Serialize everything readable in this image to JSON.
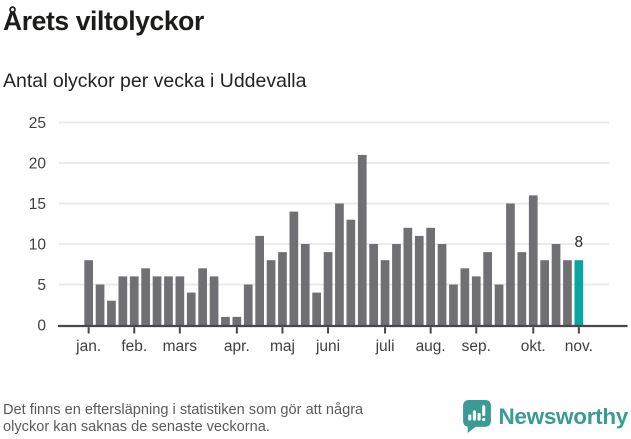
{
  "header": {
    "title": "Årets viltolyckor",
    "subtitle": "Antal olyckor per vecka i Uddevalla"
  },
  "chart_data": {
    "type": "bar",
    "title": "Årets viltolyckor",
    "subtitle": "Antal olyckor per vecka i Uddevalla",
    "x_unit": "vecka",
    "n_weeks": 44,
    "values": [
      8,
      5,
      3,
      6,
      6,
      7,
      6,
      6,
      6,
      4,
      7,
      6,
      1,
      1,
      5,
      11,
      8,
      9,
      14,
      10,
      4,
      9,
      15,
      13,
      21,
      10,
      8,
      10,
      12,
      11,
      12,
      10,
      5,
      7,
      6,
      9,
      5,
      15,
      9,
      16,
      8,
      10,
      8,
      8
    ],
    "ylim": [
      0,
      25
    ],
    "yticks": [
      0,
      5,
      10,
      15,
      20,
      25
    ],
    "grid": true,
    "legend": "none",
    "month_ticks": [
      {
        "label": "jan.",
        "bar_index": 1
      },
      {
        "label": "feb.",
        "bar_index": 5
      },
      {
        "label": "mars",
        "bar_index": 9
      },
      {
        "label": "apr.",
        "bar_index": 14
      },
      {
        "label": "maj",
        "bar_index": 18
      },
      {
        "label": "juni",
        "bar_index": 22
      },
      {
        "label": "juli",
        "bar_index": 27
      },
      {
        "label": "aug.",
        "bar_index": 31
      },
      {
        "label": "sep.",
        "bar_index": 35
      },
      {
        "label": "okt.",
        "bar_index": 40
      },
      {
        "label": "nov.",
        "bar_index": 44
      }
    ],
    "highlight": {
      "bar_index": 44,
      "value": 8,
      "label": "8"
    },
    "colors": {
      "bar": "#6f6f74",
      "highlight": "#0aa5a0",
      "grid": "#e8e8e8",
      "axis": "#47474b",
      "axis_text": "#3f3f42",
      "value_label": "#2b2b2b"
    }
  },
  "footer": {
    "note": "Det finns en eftersläpning i statistiken som gör att några\nolyckor kan saknas de senaste veckorna.",
    "brand": {
      "name": "Newsworthy",
      "icon": "newsworthy-bubble-chart-icon",
      "color": "#3a9b94",
      "icon_bg": "#3a9b94"
    }
  }
}
